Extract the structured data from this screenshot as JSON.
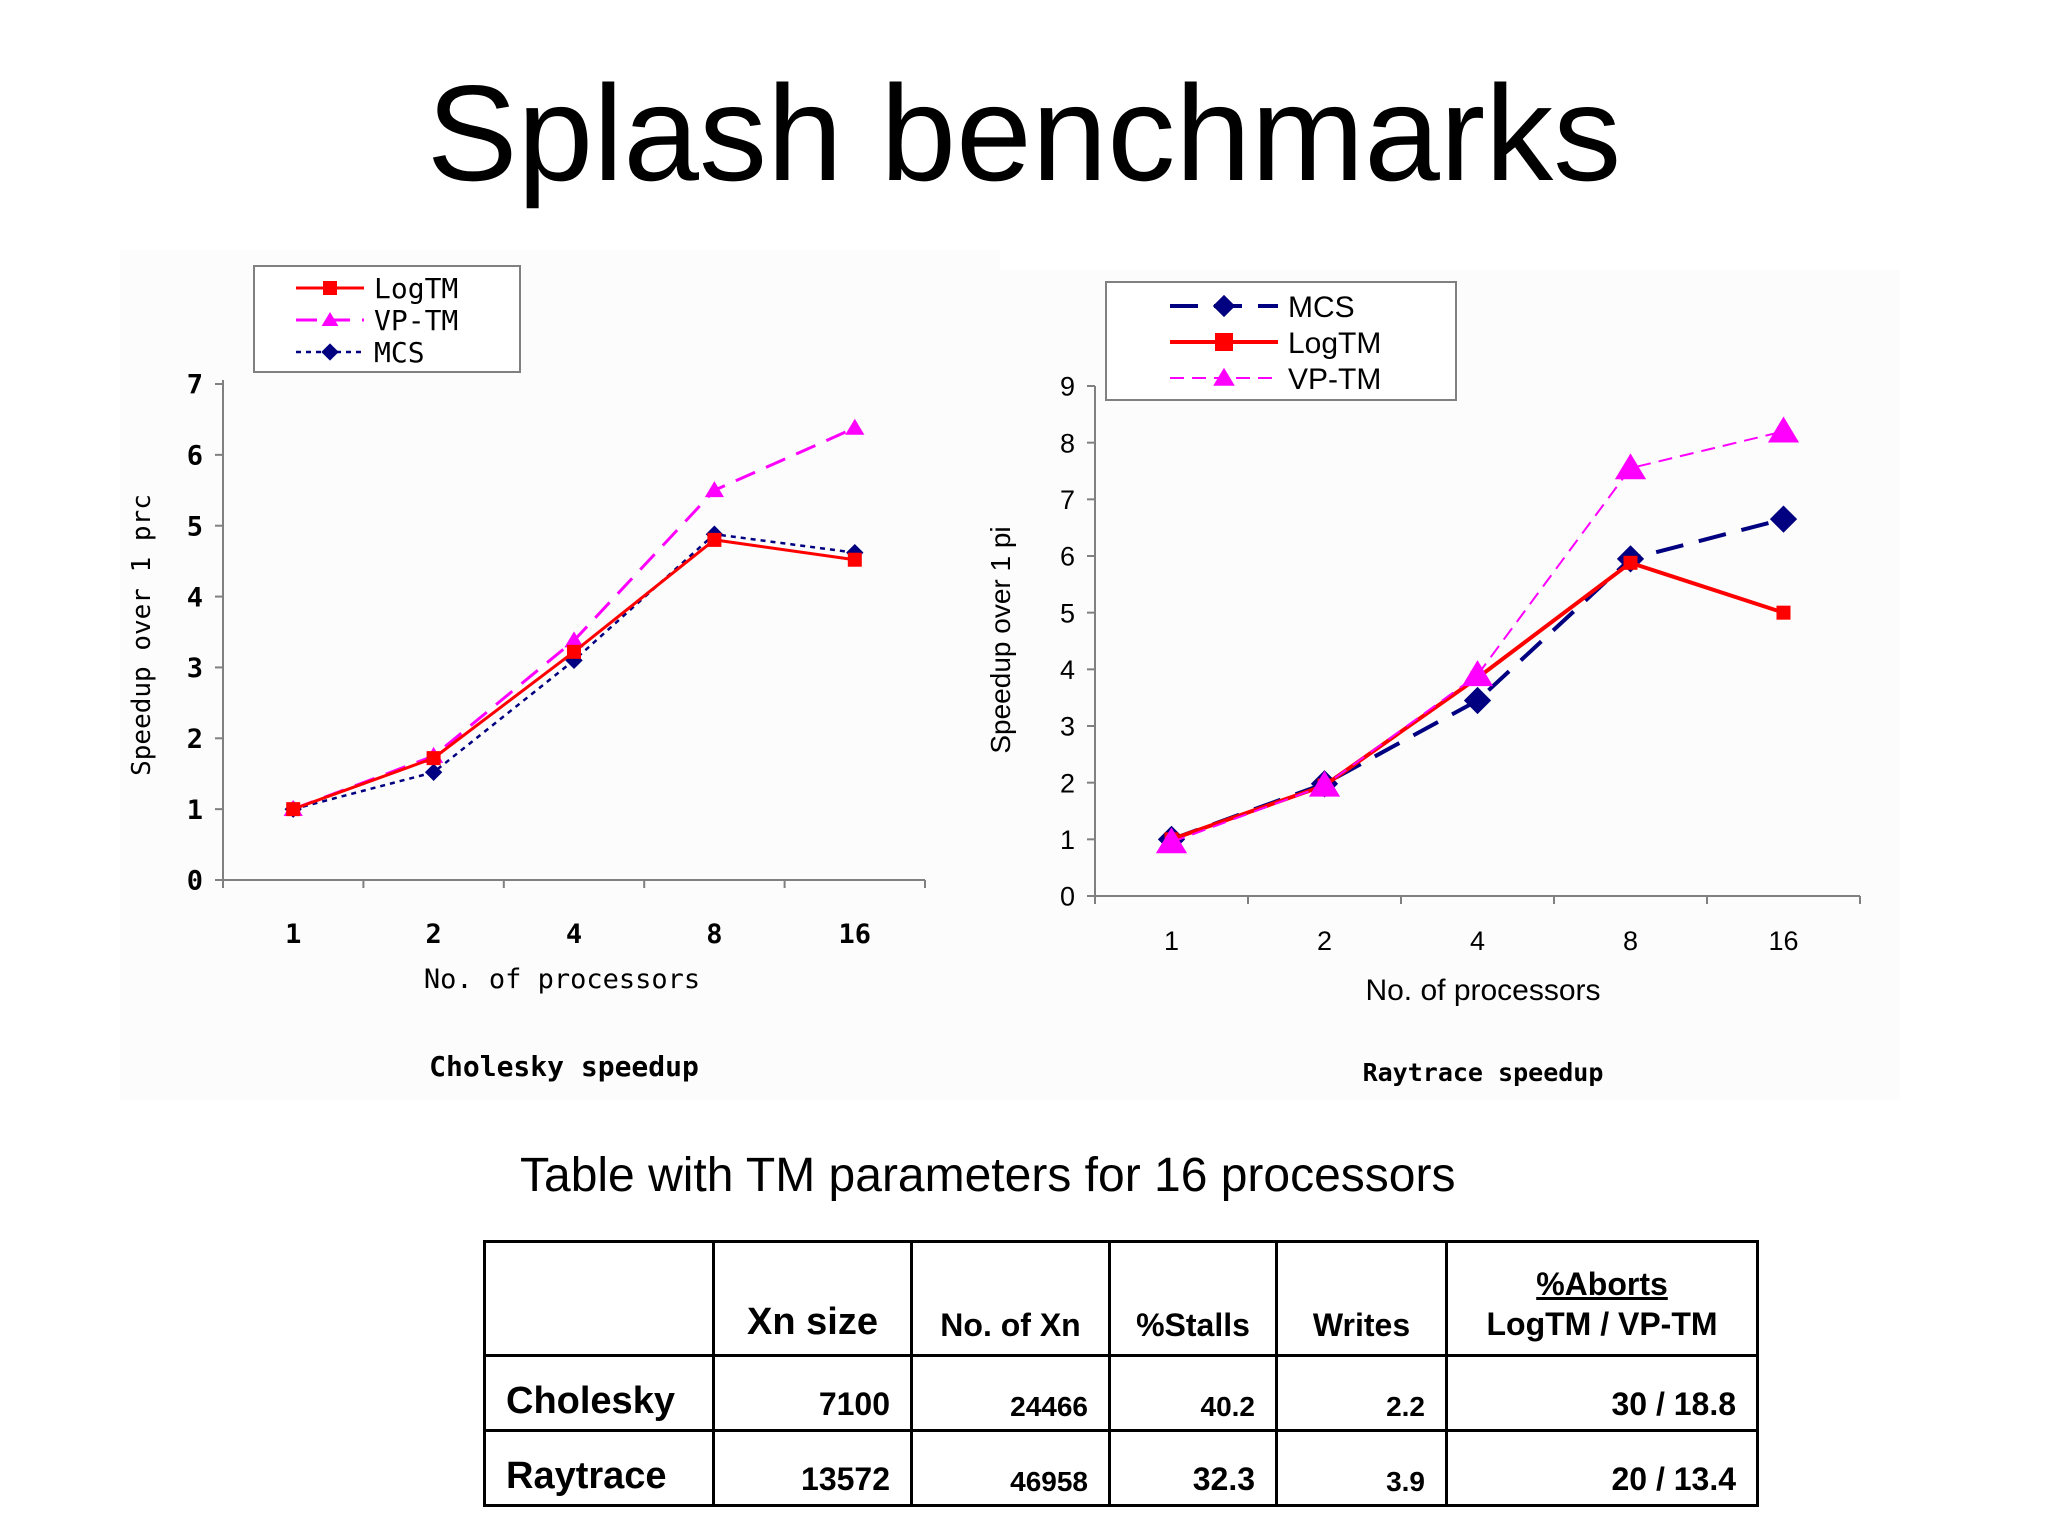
{
  "slide": {
    "title": "Splash benchmarks"
  },
  "chart_data": [
    {
      "type": "line",
      "title": "Cholesky speedup",
      "xlabel": "No. of processors",
      "ylabel": "Speedup over 1 prc",
      "categories": [
        "1",
        "2",
        "4",
        "8",
        "16"
      ],
      "ylim": [
        0,
        7
      ],
      "yticks": [
        0,
        1,
        2,
        3,
        4,
        5,
        6,
        7
      ],
      "grid": false,
      "legend_position": "top-left",
      "series": [
        {
          "name": "LogTM",
          "values": [
            1.0,
            1.72,
            3.22,
            4.8,
            4.52
          ],
          "color": "#ff0000",
          "dash": "solid",
          "marker": "square"
        },
        {
          "name": "VP-TM",
          "values": [
            1.0,
            1.75,
            3.38,
            5.5,
            6.38
          ],
          "color": "#ff00ff",
          "dash": "dashed",
          "marker": "triangle"
        },
        {
          "name": "MCS",
          "values": [
            1.0,
            1.52,
            3.1,
            4.88,
            4.62
          ],
          "color": "#000080",
          "dash": "dotted",
          "marker": "diamond"
        }
      ]
    },
    {
      "type": "line",
      "title": "Raytrace speedup",
      "xlabel": "No. of processors",
      "ylabel": "Speedup over 1 pi",
      "categories": [
        "1",
        "2",
        "4",
        "8",
        "16"
      ],
      "ylim": [
        0,
        9
      ],
      "yticks": [
        0,
        1,
        2,
        3,
        4,
        5,
        6,
        7,
        8,
        9
      ],
      "grid": false,
      "legend_position": "top-left",
      "series": [
        {
          "name": "MCS",
          "values": [
            1.0,
            1.98,
            3.45,
            5.95,
            6.65
          ],
          "color": "#000080",
          "dash": "dashed",
          "marker": "diamond"
        },
        {
          "name": "LogTM",
          "values": [
            1.0,
            1.95,
            3.85,
            5.88,
            5.0
          ],
          "color": "#ff0000",
          "dash": "solid",
          "marker": "square"
        },
        {
          "name": "VP-TM",
          "values": [
            0.95,
            1.95,
            3.9,
            7.55,
            8.2
          ],
          "color": "#ff00ff",
          "dash": "dashed",
          "marker": "triangle"
        }
      ]
    }
  ],
  "table": {
    "title": "Table with TM parameters for 16 processors",
    "headers": {
      "blank": "",
      "xn_size": "Xn size",
      "no_of_xn": "No. of Xn",
      "stalls": "%Stalls",
      "writes": "Writes",
      "aborts_top": "%Aborts",
      "aborts_bottom": "LogTM / VP-TM"
    },
    "rows": [
      {
        "name": "Cholesky",
        "xn_size": "7100",
        "no_of_xn": "24466",
        "stalls": "40.2",
        "writes": "2.2",
        "aborts": "30 / 18.8"
      },
      {
        "name": "Raytrace",
        "xn_size": "13572",
        "no_of_xn": "46958",
        "stalls": "32.3",
        "writes": "3.9",
        "aborts": "20 / 13.4"
      }
    ]
  }
}
